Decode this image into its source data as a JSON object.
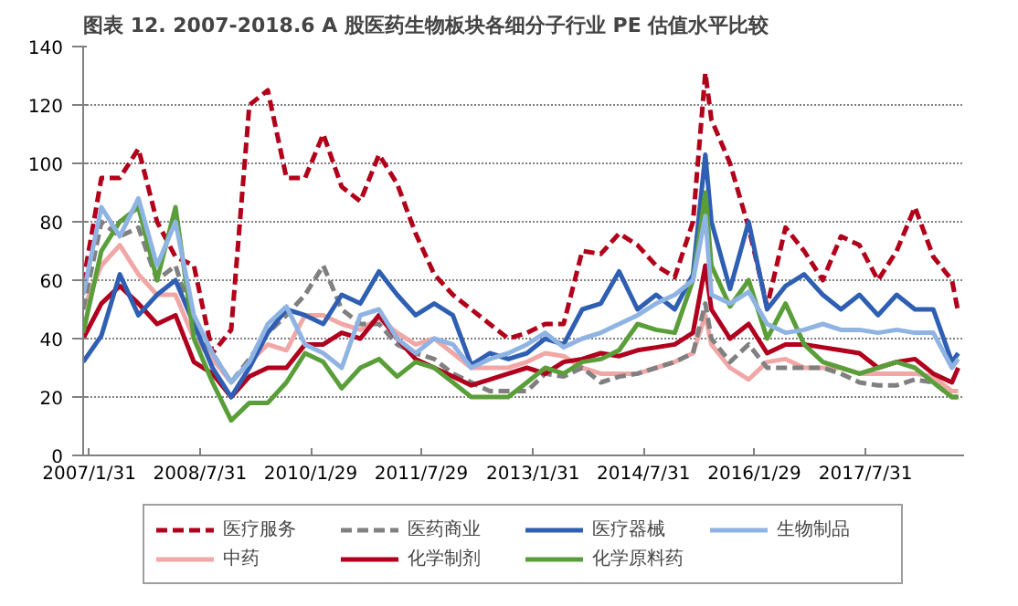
{
  "chart_data": {
    "type": "line",
    "title": "图表 12. 2007-2018.6 A 股医药生物板块各细分子行业 PE 估值水平比较",
    "x": [
      "2007-01",
      "2007-04",
      "2007-07",
      "2007-10",
      "2008-01",
      "2008-04",
      "2008-07",
      "2008-10",
      "2009-01",
      "2009-04",
      "2009-07",
      "2009-10",
      "2010-01",
      "2010-04",
      "2010-07",
      "2010-10",
      "2011-01",
      "2011-04",
      "2011-07",
      "2011-10",
      "2012-01",
      "2012-04",
      "2012-07",
      "2012-10",
      "2013-01",
      "2013-04",
      "2013-07",
      "2013-10",
      "2014-01",
      "2014-04",
      "2014-07",
      "2014-10",
      "2015-01",
      "2015-04",
      "2015-06",
      "2015-07",
      "2015-10",
      "2016-01",
      "2016-04",
      "2016-07",
      "2016-10",
      "2017-01",
      "2017-04",
      "2017-07",
      "2017-10",
      "2018-01",
      "2018-04",
      "2018-07",
      "2018-10",
      "2018-11"
    ],
    "series": [
      {
        "name": "医疗服务",
        "color": "#b2001a",
        "line_style": "dashed",
        "values": [
          59,
          95,
          95,
          105,
          80,
          68,
          65,
          35,
          43,
          120,
          125,
          95,
          95,
          110,
          92,
          87,
          103,
          93,
          76,
          62,
          55,
          50,
          45,
          40,
          42,
          45,
          45,
          70,
          69,
          76,
          72,
          65,
          61,
          80,
          131,
          115,
          100,
          78,
          51,
          78,
          70,
          60,
          75,
          72,
          60,
          70,
          85,
          68,
          60,
          49
        ]
      },
      {
        "name": "中药",
        "color": "#f2a7a7",
        "values": [
          50,
          65,
          72,
          62,
          55,
          55,
          40,
          33,
          25,
          32,
          38,
          36,
          48,
          48,
          45,
          43,
          47,
          42,
          38,
          40,
          35,
          30,
          30,
          30,
          32,
          35,
          34,
          30,
          28,
          28,
          28,
          30,
          32,
          35,
          48,
          38,
          30,
          26,
          32,
          33,
          30,
          30,
          30,
          28,
          28,
          28,
          28,
          27,
          22,
          22
        ]
      },
      {
        "name": "医药商业",
        "color": "#808080",
        "line_style": "dashed",
        "values": [
          50,
          80,
          75,
          78,
          60,
          65,
          45,
          35,
          25,
          33,
          42,
          48,
          55,
          65,
          50,
          45,
          45,
          38,
          35,
          33,
          28,
          25,
          22,
          22,
          22,
          28,
          27,
          30,
          25,
          27,
          28,
          30,
          32,
          35,
          52,
          40,
          32,
          38,
          30,
          30,
          30,
          30,
          28,
          25,
          24,
          24,
          26,
          25,
          20,
          20
        ]
      },
      {
        "name": "化学制剂",
        "color": "#b0001e",
        "values": [
          40,
          52,
          58,
          52,
          45,
          48,
          32,
          28,
          20,
          27,
          30,
          30,
          38,
          38,
          42,
          40,
          48,
          40,
          33,
          30,
          27,
          24,
          26,
          28,
          30,
          28,
          32,
          33,
          35,
          34,
          36,
          37,
          38,
          42,
          65,
          50,
          40,
          45,
          35,
          38,
          38,
          37,
          36,
          35,
          30,
          32,
          33,
          28,
          25,
          30
        ]
      },
      {
        "name": "医疗器械",
        "color": "#2f5fb3",
        "values": [
          32,
          41,
          62,
          48,
          55,
          60,
          45,
          30,
          20,
          30,
          42,
          50,
          48,
          45,
          55,
          52,
          63,
          55,
          48,
          52,
          48,
          31,
          35,
          33,
          35,
          40,
          38,
          50,
          52,
          63,
          50,
          55,
          50,
          62,
          103,
          80,
          57,
          80,
          50,
          58,
          62,
          55,
          50,
          55,
          48,
          55,
          50,
          50,
          32,
          35
        ]
      },
      {
        "name": "化学原料药",
        "color": "#5a9e3a",
        "values": [
          42,
          70,
          80,
          85,
          60,
          85,
          40,
          25,
          12,
          18,
          18,
          25,
          35,
          32,
          23,
          30,
          33,
          27,
          32,
          30,
          25,
          20,
          20,
          20,
          25,
          30,
          28,
          32,
          33,
          36,
          45,
          43,
          42,
          60,
          90,
          65,
          51,
          60,
          40,
          52,
          38,
          32,
          30,
          28,
          30,
          32,
          30,
          25,
          20,
          20
        ]
      },
      {
        "name": "生物制品",
        "color": "#8fb4e3",
        "values": [
          55,
          85,
          75,
          88,
          65,
          80,
          48,
          35,
          25,
          32,
          45,
          51,
          38,
          35,
          30,
          48,
          50,
          40,
          35,
          40,
          38,
          30,
          33,
          35,
          38,
          42,
          37,
          40,
          42,
          45,
          48,
          52,
          55,
          60,
          82,
          55,
          52,
          56,
          45,
          42,
          43,
          45,
          43,
          43,
          42,
          43,
          42,
          42,
          30,
          33
        ]
      }
    ],
    "xlim": [
      "2007-01-01",
      "2018-11-30"
    ],
    "xticks": [
      {
        "value": "2007-01-31",
        "label": "2007/1/31"
      },
      {
        "value": "2008-07-31",
        "label": "2008/7/31"
      },
      {
        "value": "2010-01-29",
        "label": "2010/1/29"
      },
      {
        "value": "2011-07-29",
        "label": "2011/7/29"
      },
      {
        "value": "2013-01-31",
        "label": "2013/1/31"
      },
      {
        "value": "2014-07-31",
        "label": "2014/7/31"
      },
      {
        "value": "2016-01-29",
        "label": "2016/1/29"
      },
      {
        "value": "2017-07-31",
        "label": "2017/7/31"
      }
    ],
    "ylim": [
      0,
      140
    ],
    "yticks": [
      0,
      20,
      40,
      60,
      80,
      100,
      120,
      140
    ],
    "grid": "y",
    "legend": "bottom",
    "line_style": "solid"
  }
}
